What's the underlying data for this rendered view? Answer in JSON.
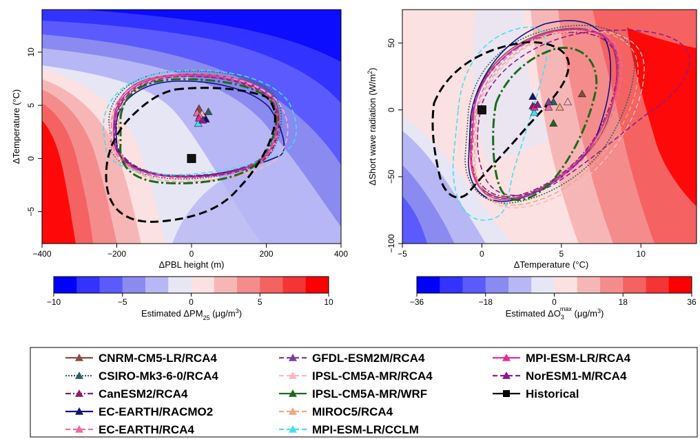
{
  "colors": {
    "neg": [
      "#0000ff",
      "#3333ff",
      "#5a5aff",
      "#8a8af0",
      "#b7b7f5",
      "#e6e6f5"
    ],
    "pos": [
      "#fbe1e1",
      "#f7b6b6",
      "#f48c8c",
      "#f46262",
      "#f53535",
      "#ff0000"
    ],
    "cnrm": "#8b4a44",
    "csiro": "#2f5f5f",
    "canesm": "#8b1a6b",
    "ecearth_racmo": "#101080",
    "ecearth_rca": "#ee6aa7",
    "gfdl": "#7b3f9e",
    "ipsl_rca": "#ffb6c1",
    "ipsl_wrf": "#1a6b1a",
    "miroc": "#f4a582",
    "mpi_cclm": "#40e0f0",
    "mpi_rca": "#e8299a",
    "noresm": "#8b1a8b",
    "historical": "#000000"
  },
  "panels": {
    "left": {
      "xlabel": "ΔPBL height (m)",
      "ylabel": "ΔTemperature (°C)",
      "xticks": [
        "−400",
        "−200",
        "0",
        "200",
        "400"
      ],
      "yticks": [
        "−5",
        "0",
        "5",
        "10"
      ],
      "cbar_ticks": [
        "−10",
        "−5",
        "0",
        "5",
        "10"
      ],
      "cbar_label": "Estimated ΔPM",
      "cbar_label_sub": "25",
      "cbar_label_unit": " (μg/m",
      "cbar_label_sup": "3",
      "cbar_label_end": ")"
    },
    "right": {
      "xlabel": "ΔTemperature (°C)",
      "ylabel": "ΔShort wave radiation (W/m",
      "ylabel_sup": "2",
      "ylabel_end": ")",
      "xticks": [
        "−5",
        "0",
        "5",
        "10"
      ],
      "yticks": [
        "−100",
        "−50",
        "0",
        "50"
      ],
      "cbar_ticks": [
        "−36",
        "−18",
        "0",
        "18",
        "36"
      ],
      "cbar_label": "Estimated ΔO",
      "cbar_label_sub": "3",
      "cbar_label_sup": "max",
      "cbar_label_unit": " (μg/m",
      "cbar_label_sup2": "3",
      "cbar_label_end": ")"
    }
  },
  "legend": {
    "items": [
      {
        "label": "CNRM-CM5-LR/RCA4",
        "color_key": "cnrm",
        "style": "solid",
        "marker": "triangle"
      },
      {
        "label": "CSIRO-Mk3-6-0/RCA4",
        "color_key": "csiro",
        "style": "dotted",
        "marker": "triangle"
      },
      {
        "label": "CanESM2/RCA4",
        "color_key": "canesm",
        "style": "dashdot",
        "marker": "triangle"
      },
      {
        "label": "EC-EARTH/RACMO2",
        "color_key": "ecearth_racmo",
        "style": "solid",
        "marker": "triangle"
      },
      {
        "label": "EC-EARTH/RCA4",
        "color_key": "ecearth_rca",
        "style": "dashed",
        "marker": "triangle"
      },
      {
        "label": "GFDL-ESM2M/RCA4",
        "color_key": "gfdl",
        "style": "dashed",
        "marker": "triangle"
      },
      {
        "label": "IPSL-CM5A-MR/RCA4",
        "color_key": "ipsl_rca",
        "style": "dashed",
        "marker": "triangle"
      },
      {
        "label": "IPSL-CM5A-MR/WRF",
        "color_key": "ipsl_wrf",
        "style": "solid",
        "marker": "triangle"
      },
      {
        "label": "MIROC5/RCA4",
        "color_key": "miroc",
        "style": "dashed",
        "marker": "triangle"
      },
      {
        "label": "MPI-ESM-LR/CCLM",
        "color_key": "mpi_cclm",
        "style": "dashed",
        "marker": "triangle"
      },
      {
        "label": "MPI-ESM-LR/RCA4",
        "color_key": "mpi_rca",
        "style": "solid",
        "marker": "triangle"
      },
      {
        "label": "NorESM1-M/RCA4",
        "color_key": "noresm",
        "style": "dashed",
        "marker": "triangle"
      },
      {
        "label": "Historical",
        "color_key": "historical",
        "style": "solid",
        "marker": "square"
      }
    ]
  },
  "chart_data": [
    {
      "type": "scatter",
      "xlabel": "ΔPBL height (m)",
      "ylabel": "ΔTemperature (°C)",
      "xlim": [
        -400,
        400
      ],
      "ylim": [
        -8,
        14
      ],
      "background": "contour map of estimated ΔPM25 (μg/m3), colour scale -10 to 10",
      "points": [
        {
          "name": "CNRM-CM5-LR/RCA4",
          "x": 20,
          "y": 4.7
        },
        {
          "name": "CSIRO-Mk3-6-0/RCA4",
          "x": 45,
          "y": 4.4
        },
        {
          "name": "CanESM2/RCA4",
          "x": 35,
          "y": 3.9
        },
        {
          "name": "EC-EARTH/RACMO2",
          "x": 38,
          "y": 3.7
        },
        {
          "name": "EC-EARTH/RCA4",
          "x": 15,
          "y": 4.3
        },
        {
          "name": "GFDL-ESM2M/RCA4",
          "x": 25,
          "y": 3.7
        },
        {
          "name": "IPSL-CM5A-MR/RCA4",
          "x": 28,
          "y": 4.2
        },
        {
          "name": "MIROC5/RCA4",
          "x": 22,
          "y": 4.0
        },
        {
          "name": "MPI-ESM-LR/CCLM",
          "x": 18,
          "y": 3.3
        },
        {
          "name": "MPI-ESM-LR/RCA4",
          "x": 20,
          "y": 3.8
        },
        {
          "name": "NorESM1-M/RCA4",
          "x": 30,
          "y": 3.6
        },
        {
          "name": "Historical",
          "x": 0,
          "y": 0
        }
      ]
    },
    {
      "type": "scatter",
      "xlabel": "ΔTemperature (°C)",
      "ylabel": "ΔShort wave radiation (W/m2)",
      "xlim": [
        -5,
        13.5
      ],
      "ylim": [
        -100,
        75
      ],
      "background": "contour map of estimated ΔO3max (μg/m3), colour scale -36 to 36",
      "points": [
        {
          "name": "CNRM-CM5-LR/RCA4",
          "x": 6.3,
          "y": 12
        },
        {
          "name": "CSIRO-Mk3-6-0/RCA4",
          "x": 4.5,
          "y": 6
        },
        {
          "name": "CanESM2/RCA4",
          "x": 3.2,
          "y": 3
        },
        {
          "name": "EC-EARTH/RACMO2",
          "x": 3.2,
          "y": 10
        },
        {
          "name": "EC-EARTH/RCA4",
          "x": 4.2,
          "y": 2
        },
        {
          "name": "GFDL-ESM2M/RCA4",
          "x": 4.2,
          "y": 6
        },
        {
          "name": "IPSL-CM5A-MR/RCA4",
          "x": 5.4,
          "y": 6
        },
        {
          "name": "IPSL-CM5A-MR/WRF",
          "x": 4.5,
          "y": -10
        },
        {
          "name": "MIROC5/RCA4",
          "x": 4.9,
          "y": 2
        },
        {
          "name": "MPI-ESM-LR/CCLM",
          "x": 3.3,
          "y": -2
        },
        {
          "name": "MPI-ESM-LR/RCA4",
          "x": 3.3,
          "y": 2
        },
        {
          "name": "NorESM1-M/RCA4",
          "x": 3.5,
          "y": 4
        },
        {
          "name": "Historical",
          "x": 0,
          "y": 0
        }
      ]
    }
  ]
}
